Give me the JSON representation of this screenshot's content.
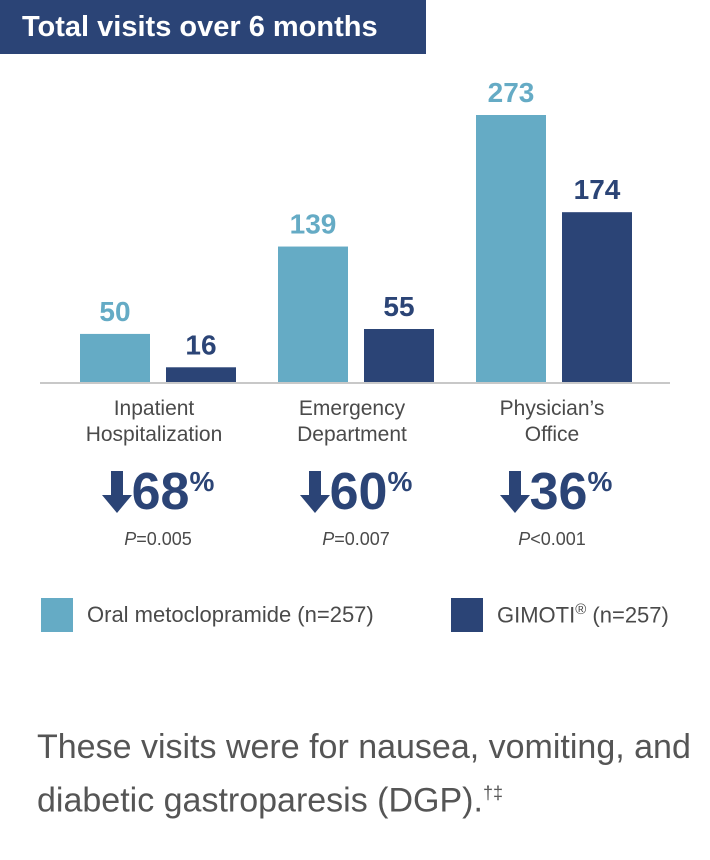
{
  "colors": {
    "oral": "#65abc5",
    "gimoti": "#2b4476",
    "axis": "#c8c8c8"
  },
  "chart_data": {
    "type": "bar",
    "title": "Total visits over 6 months",
    "categories": [
      "Inpatient\nHospitalization",
      "Emergency\nDepartment",
      "Physician’s\nOffice"
    ],
    "series": [
      {
        "name": "Oral metoclopramide (n=257)",
        "values": [
          50,
          139,
          273
        ]
      },
      {
        "name": "GIMOTI® (n=257)",
        "values": [
          16,
          55,
          174
        ]
      }
    ],
    "ylim": [
      0,
      273
    ],
    "grid": false,
    "legend": "bottom"
  },
  "annotations": [
    {
      "reduction": "68",
      "pct": "%",
      "p_label": "P",
      "p_value": "=0.005"
    },
    {
      "reduction": "60",
      "pct": "%",
      "p_label": "P",
      "p_value": "=0.007"
    },
    {
      "reduction": "36",
      "pct": "%",
      "p_label": "P",
      "p_value": "<0.001"
    }
  ],
  "legend": {
    "oral_label": "Oral metoclopramide (n=257)",
    "gimoti_name": "GIMOTI",
    "gimoti_mark": "®",
    "gimoti_n": "(n=257)"
  },
  "footnote": {
    "text": "These visits were for nausea, vomiting, and diabetic gastroparesis (DGP).",
    "marks": "†‡"
  }
}
